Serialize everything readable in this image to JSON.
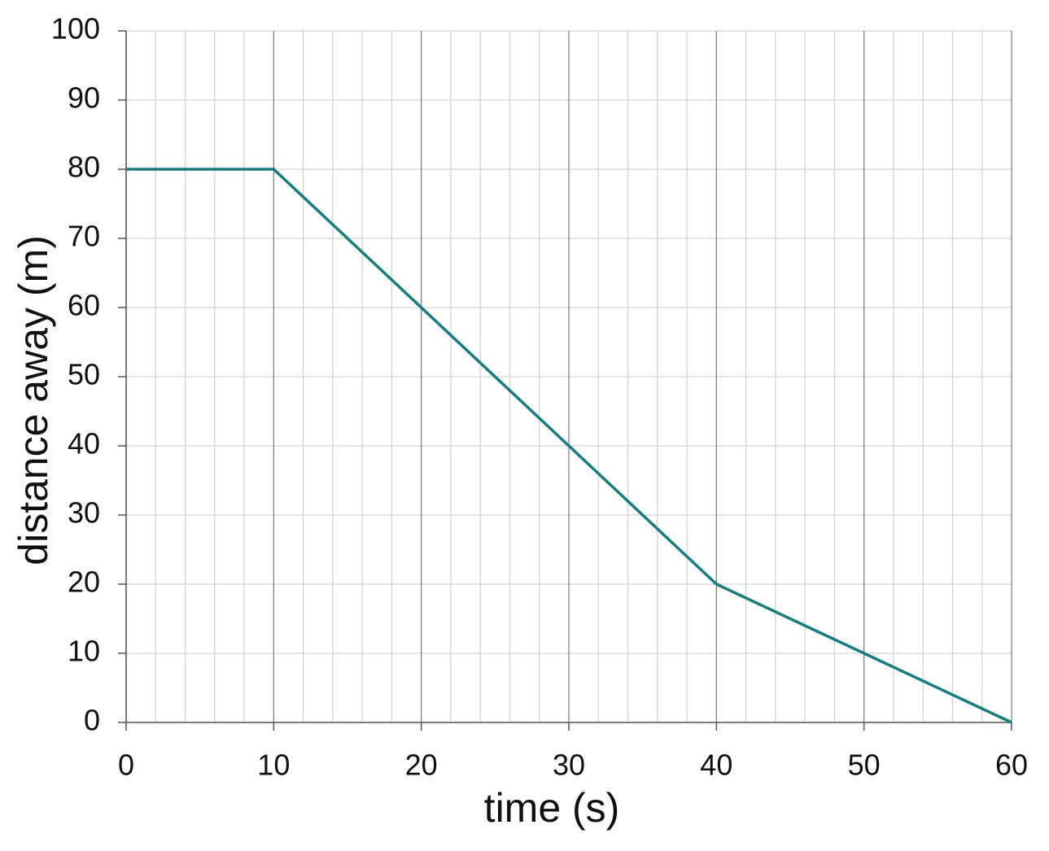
{
  "chart_data": {
    "type": "line",
    "x_label": "time (s)",
    "y_label": "distance away (m)",
    "x": [
      0,
      10,
      40,
      60
    ],
    "series": [
      {
        "color": "#137f80",
        "values": [
          80,
          80,
          20,
          0
        ]
      }
    ],
    "xlim": [
      0,
      60
    ],
    "xticks": [
      0,
      10,
      20,
      30,
      40,
      50,
      60
    ],
    "ylim": [
      0,
      100
    ],
    "yticks": [
      0,
      10,
      20,
      30,
      40,
      50,
      60,
      70,
      80,
      90,
      100
    ],
    "grid": true
  }
}
